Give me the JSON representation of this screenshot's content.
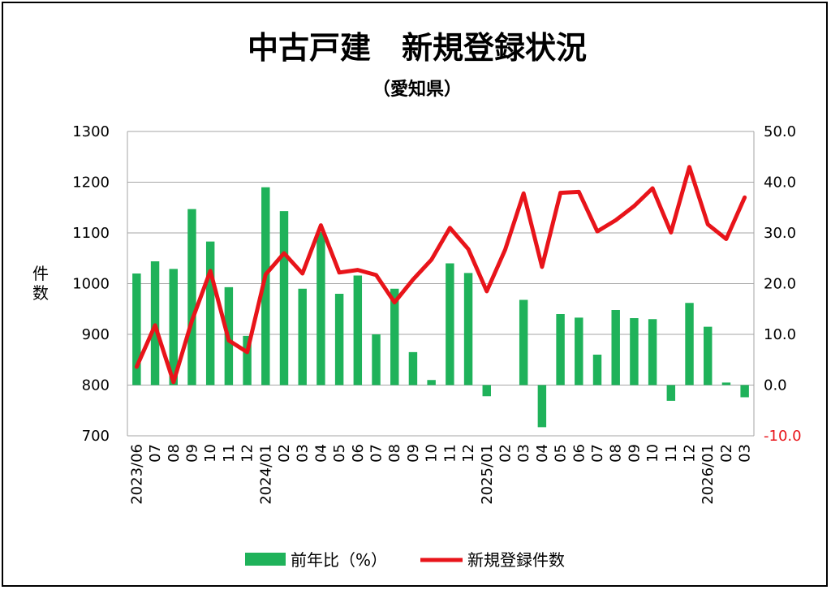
{
  "chart_data": {
    "type": "bar+line",
    "title": "中古戸建　新規登録状況",
    "subtitle": "（愛知県）",
    "ylabel_left": "件数",
    "categories": [
      "2023/06",
      "07",
      "08",
      "09",
      "10",
      "11",
      "12",
      "2024/01",
      "02",
      "03",
      "04",
      "05",
      "06",
      "07",
      "08",
      "09",
      "10",
      "11",
      "12",
      "2025/01",
      "02",
      "03",
      "04",
      "05",
      "06",
      "07",
      "08",
      "09",
      "10",
      "11",
      "12",
      "2026/01",
      "02",
      "03"
    ],
    "series": [
      {
        "name": "前年比（%）",
        "type": "bar",
        "axis": "right",
        "color": "#1fb25a",
        "values": [
          22.0,
          24.4,
          22.9,
          34.7,
          28.3,
          19.3,
          9.7,
          39.0,
          34.3,
          19.0,
          30.2,
          18.0,
          21.6,
          10.0,
          19.0,
          6.5,
          1.0,
          24.0,
          22.1,
          -2.2,
          0.0,
          16.8,
          -8.3,
          14.0,
          13.3,
          6.0,
          14.8,
          13.2,
          13.0,
          -3.1,
          16.2,
          11.5,
          0.5,
          -2.4
        ]
      },
      {
        "name": "新規登録件数",
        "type": "line",
        "axis": "left",
        "color": "#e8141a",
        "values": [
          836,
          918,
          806,
          927,
          1025,
          888,
          865,
          1018,
          1060,
          1020,
          1115,
          1022,
          1027,
          1017,
          963,
          1008,
          1047,
          1110,
          1068,
          985,
          1067,
          1178,
          1033,
          1179,
          1181,
          1103,
          1125,
          1153,
          1188,
          1101,
          1230,
          1117,
          1088,
          1170
        ]
      }
    ],
    "ylim_left": [
      700,
      1300
    ],
    "yticks_left": [
      "700",
      "800",
      "900",
      "1000",
      "1100",
      "1200",
      "1300"
    ],
    "ylim_right": [
      -10,
      50
    ],
    "yticks_right": [
      "-10.0",
      "0.0",
      "10.0",
      "20.0",
      "30.0",
      "40.0",
      "50.0"
    ],
    "grid": true,
    "legend": "bottom"
  }
}
